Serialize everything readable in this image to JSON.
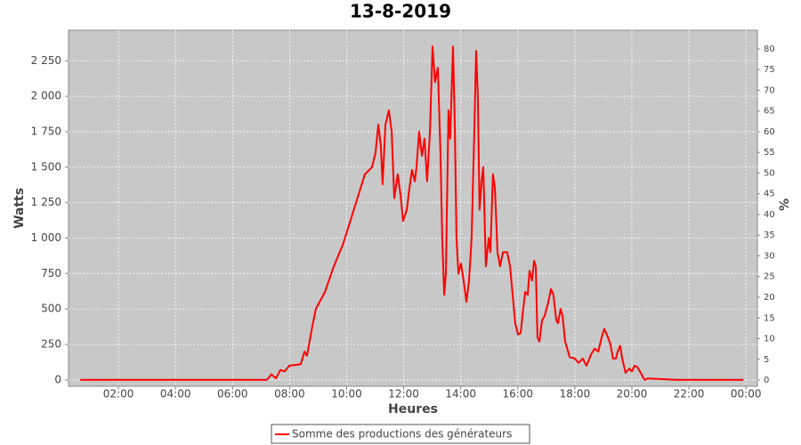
{
  "chart_data": {
    "type": "line",
    "title": "13-8-2019",
    "x_label": "Heures",
    "y_label": "Watts",
    "y2_label": "%",
    "xlim": [
      0.25,
      24.4
    ],
    "ylim": [
      -45,
      2465
    ],
    "y2lim": [
      -1.5,
      84.5
    ],
    "xticks": [
      {
        "value": 2,
        "label": "02:00"
      },
      {
        "value": 4,
        "label": "04:00"
      },
      {
        "value": 6,
        "label": "06:00"
      },
      {
        "value": 8,
        "label": "08:00"
      },
      {
        "value": 10,
        "label": "10:00"
      },
      {
        "value": 12,
        "label": "12:00"
      },
      {
        "value": 14,
        "label": "14:00"
      },
      {
        "value": 16,
        "label": "16:00"
      },
      {
        "value": 18,
        "label": "18:00"
      },
      {
        "value": 20,
        "label": "20:00"
      },
      {
        "value": 22,
        "label": "22:00"
      },
      {
        "value": 24,
        "label": "00:00"
      }
    ],
    "yticks": [
      0,
      250,
      500,
      750,
      {
        "value": 1000,
        "label": "1 000"
      },
      {
        "value": 1250,
        "label": "1 250"
      },
      {
        "value": 1500,
        "label": "1 500"
      },
      {
        "value": 1750,
        "label": "1 750"
      },
      {
        "value": 2000,
        "label": "2 000"
      },
      {
        "value": 2250,
        "label": "2 250"
      }
    ],
    "y2ticks": [
      0,
      5,
      10,
      15,
      20,
      25,
      30,
      35,
      40,
      45,
      50,
      55,
      60,
      65,
      70,
      75,
      80
    ],
    "grid": true,
    "legend": "bottom",
    "x": [
      0.66,
      4.09,
      5.96,
      7.21,
      7.36,
      7.52,
      7.68,
      7.83,
      7.99,
      8.39,
      8.52,
      8.61,
      8.77,
      8.92,
      9.24,
      9.55,
      9.86,
      10.02,
      10.33,
      10.64,
      10.89,
      11.01,
      11.11,
      11.2,
      11.26,
      11.36,
      11.48,
      11.58,
      11.67,
      11.79,
      11.89,
      11.98,
      12.11,
      12.2,
      12.29,
      12.39,
      12.45,
      12.54,
      12.64,
      12.73,
      12.82,
      12.92,
      13.01,
      13.1,
      13.2,
      13.29,
      13.35,
      13.42,
      13.48,
      13.57,
      13.63,
      13.73,
      13.79,
      13.85,
      13.92,
      14.01,
      14.1,
      14.2,
      14.29,
      14.38,
      14.48,
      14.54,
      14.6,
      14.66,
      14.73,
      14.79,
      14.88,
      14.98,
      15.04,
      15.13,
      15.2,
      15.29,
      15.38,
      15.48,
      15.63,
      15.73,
      15.82,
      15.91,
      16.01,
      16.1,
      16.19,
      16.26,
      16.35,
      16.41,
      16.5,
      16.57,
      16.63,
      16.69,
      16.76,
      16.85,
      16.94,
      17.07,
      17.16,
      17.25,
      17.35,
      17.41,
      17.5,
      17.57,
      17.66,
      17.82,
      18.0,
      18.13,
      18.28,
      18.41,
      18.57,
      18.69,
      18.82,
      18.94,
      19.03,
      19.16,
      19.25,
      19.34,
      19.44,
      19.5,
      19.59,
      19.66,
      19.78,
      19.91,
      20.0,
      20.09,
      20.19,
      20.31,
      20.44,
      20.56,
      21.56,
      22.81,
      23.9
    ],
    "series": [
      {
        "name": "Somme des productions des  générateurs",
        "color": "#ff0000",
        "values": [
          0,
          0,
          0,
          0,
          40,
          10,
          70,
          60,
          100,
          110,
          200,
          170,
          350,
          500,
          620,
          800,
          950,
          1050,
          1250,
          1450,
          1500,
          1600,
          1800,
          1650,
          1380,
          1800,
          1900,
          1750,
          1280,
          1450,
          1300,
          1120,
          1200,
          1350,
          1480,
          1400,
          1500,
          1750,
          1580,
          1700,
          1400,
          1750,
          2350,
          2100,
          2200,
          1600,
          1000,
          600,
          750,
          1900,
          1700,
          2350,
          1800,
          1000,
          750,
          820,
          700,
          550,
          700,
          1000,
          1800,
          2320,
          2000,
          1200,
          1400,
          1500,
          800,
          1000,
          900,
          1450,
          1350,
          900,
          800,
          900,
          900,
          800,
          600,
          400,
          320,
          330,
          500,
          620,
          600,
          770,
          700,
          840,
          800,
          300,
          270,
          420,
          450,
          550,
          640,
          600,
          420,
          400,
          500,
          450,
          270,
          160,
          150,
          120,
          150,
          100,
          180,
          220,
          200,
          300,
          360,
          300,
          250,
          150,
          150,
          200,
          240,
          150,
          50,
          80,
          60,
          100,
          90,
          50,
          0,
          10,
          0,
          0,
          0
        ]
      }
    ]
  }
}
